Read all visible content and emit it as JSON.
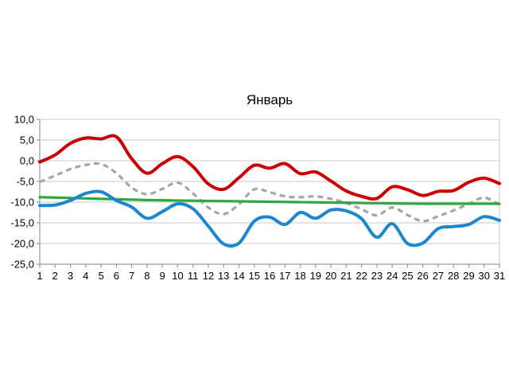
{
  "title": "Январь",
  "colors": {
    "red_line": "#cc0000",
    "blue_line": "#1b87cf",
    "green_line": "#2fa93c",
    "gray_dashed_line": "#a6a6a6",
    "gridline": "#c9c9c9",
    "axis": "#9a9a9a",
    "background": "#ffffff",
    "text": "#000000"
  },
  "chart_data": {
    "type": "line",
    "title": "Январь",
    "xlabel": "",
    "ylabel": "",
    "x": [
      1,
      2,
      3,
      4,
      5,
      6,
      7,
      8,
      9,
      10,
      11,
      12,
      13,
      14,
      15,
      16,
      17,
      18,
      19,
      20,
      21,
      22,
      23,
      24,
      25,
      26,
      27,
      28,
      29,
      30,
      31
    ],
    "x_tick_labels": [
      "1",
      "2",
      "3",
      "4",
      "5",
      "6",
      "7",
      "8",
      "9",
      "10",
      "11",
      "12",
      "13",
      "14",
      "15",
      "16",
      "17",
      "18",
      "19",
      "20",
      "21",
      "22",
      "23",
      "24",
      "25",
      "26",
      "27",
      "28",
      "29",
      "30",
      "31"
    ],
    "ylim": [
      -25,
      10
    ],
    "y_ticks": [
      10,
      5,
      0,
      -5,
      -10,
      -15,
      -20,
      -25
    ],
    "y_tick_labels": [
      "10,0",
      "5,0",
      "0,0",
      "-5,0",
      "-10,0",
      "-15,0",
      "-20,0",
      "-25,0"
    ],
    "grid": true,
    "legend": "none",
    "line_smoothing": true,
    "series": [
      {
        "name": "gray-dashed",
        "color": "#a6a6a6",
        "style": "dashed",
        "width": 3.2,
        "values": [
          -5.1,
          -3.6,
          -2.0,
          -1.0,
          -0.8,
          -3.0,
          -6.5,
          -8.1,
          -6.8,
          -5.3,
          -7.9,
          -11.3,
          -12.9,
          -10.5,
          -6.9,
          -7.6,
          -8.6,
          -8.8,
          -8.6,
          -9.2,
          -10.2,
          -11.7,
          -13.2,
          -11.3,
          -13.1,
          -14.6,
          -13.4,
          -12.0,
          -10.4,
          -8.9,
          -10.6
        ]
      },
      {
        "name": "green",
        "color": "#2fa93c",
        "style": "solid",
        "width": 3.2,
        "values": [
          -8.8,
          -8.9,
          -9.0,
          -9.1,
          -9.2,
          -9.3,
          -9.4,
          -9.5,
          -9.55,
          -9.6,
          -9.65,
          -9.7,
          -9.75,
          -9.8,
          -9.85,
          -9.9,
          -9.95,
          -10.0,
          -10.05,
          -10.1,
          -10.15,
          -10.2,
          -10.25,
          -10.3,
          -10.35,
          -10.4,
          -10.4,
          -10.4,
          -10.4,
          -10.4,
          -10.4
        ]
      },
      {
        "name": "blue",
        "color": "#1b87cf",
        "style": "solid",
        "width": 4,
        "values": [
          -10.8,
          -10.7,
          -9.6,
          -7.9,
          -7.5,
          -9.6,
          -11.2,
          -13.9,
          -12.3,
          -10.4,
          -11.6,
          -15.8,
          -20.1,
          -19.9,
          -14.6,
          -13.6,
          -15.4,
          -12.5,
          -13.9,
          -11.9,
          -12.1,
          -14.0,
          -18.5,
          -15.2,
          -20.0,
          -19.9,
          -16.4,
          -15.9,
          -15.4,
          -13.5,
          -14.4
        ]
      },
      {
        "name": "red",
        "color": "#cc0000",
        "style": "solid",
        "width": 4,
        "values": [
          -0.3,
          1.4,
          4.2,
          5.5,
          5.3,
          5.8,
          0.5,
          -3.0,
          -0.7,
          1.0,
          -1.4,
          -5.6,
          -6.9,
          -4.1,
          -1.1,
          -1.8,
          -0.7,
          -3.1,
          -2.7,
          -4.9,
          -7.3,
          -8.6,
          -9.1,
          -6.3,
          -7.0,
          -8.4,
          -7.4,
          -7.2,
          -5.2,
          -4.2,
          -5.5
        ]
      }
    ]
  }
}
